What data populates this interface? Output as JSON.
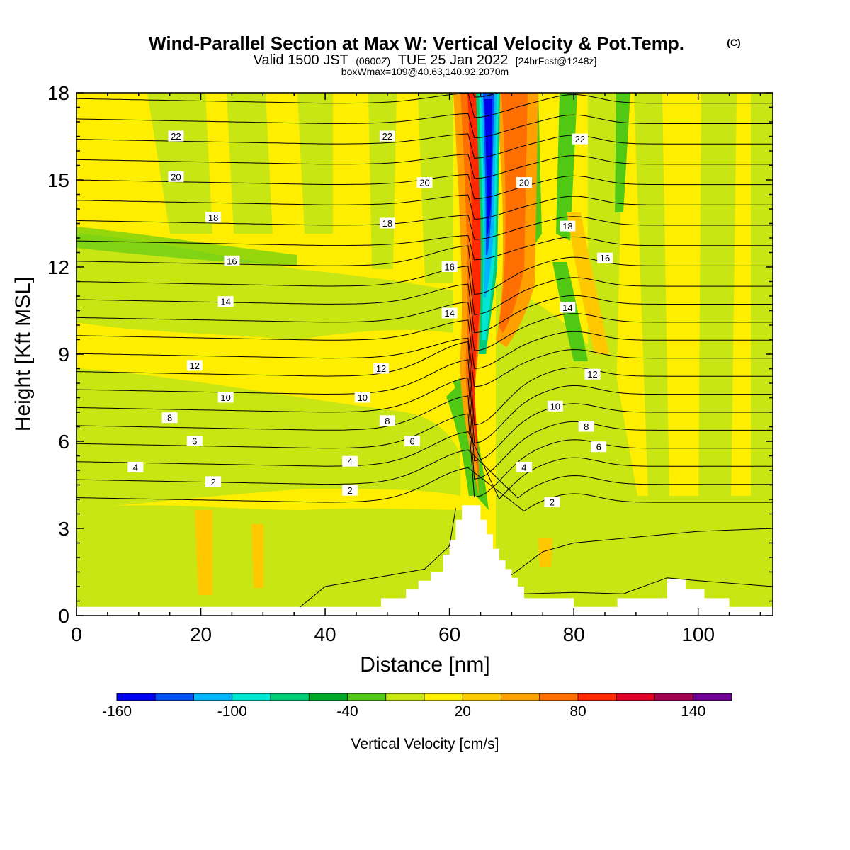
{
  "header": {
    "title": "Wind-Parallel Section at Max W: Vertical Velocity & Pot.Temp.",
    "copyright": "(C)",
    "valid_prefix": "Valid 1500 JST",
    "valid_zulu": "(0600Z)",
    "valid_date": "TUE 25 Jan 2022",
    "forecast": "[24hrFcst@1248z]",
    "box_info": "boxWmax=109@40.63,140.92,2070m"
  },
  "chart_data": {
    "type": "heatmap",
    "title": "Wind-Parallel Section at Max W: Vertical Velocity & Pot.Temp.",
    "xlabel": "Distance [nm]",
    "ylabel": "Height [Kft MSL]",
    "xlim": [
      0,
      112
    ],
    "ylim": [
      0,
      18
    ],
    "xticks": [
      0,
      20,
      40,
      60,
      80,
      100
    ],
    "yticks": [
      0,
      3,
      6,
      9,
      12,
      15,
      18
    ],
    "colorbar": {
      "label": "Vertical Velocity [cm/s]",
      "ticks": [
        "-160",
        "-100",
        "-40",
        "20",
        "80",
        "140"
      ],
      "colors": [
        "#0000ee",
        "#0050f0",
        "#00b4ff",
        "#00e6d2",
        "#00cc78",
        "#00aa28",
        "#50c814",
        "#c8e614",
        "#ffee00",
        "#ffc800",
        "#ffa000",
        "#ff6e00",
        "#ff2800",
        "#dc0028",
        "#a00050",
        "#6e0096"
      ]
    },
    "contour_labels": [
      {
        "text": "22",
        "x": 16,
        "y": 16.5
      },
      {
        "text": "22",
        "x": 50,
        "y": 16.5
      },
      {
        "text": "22",
        "x": 81,
        "y": 16.4
      },
      {
        "text": "20",
        "x": 16,
        "y": 15.1
      },
      {
        "text": "20",
        "x": 56,
        "y": 14.9
      },
      {
        "text": "20",
        "x": 72,
        "y": 14.9
      },
      {
        "text": "18",
        "x": 22,
        "y": 13.7
      },
      {
        "text": "18",
        "x": 50,
        "y": 13.5
      },
      {
        "text": "18",
        "x": 79,
        "y": 13.4
      },
      {
        "text": "16",
        "x": 25,
        "y": 12.2
      },
      {
        "text": "16",
        "x": 60,
        "y": 12.0
      },
      {
        "text": "16",
        "x": 85,
        "y": 12.3
      },
      {
        "text": "14",
        "x": 24,
        "y": 10.8
      },
      {
        "text": "14",
        "x": 60,
        "y": 10.4
      },
      {
        "text": "14",
        "x": 79,
        "y": 10.6
      },
      {
        "text": "12",
        "x": 19,
        "y": 8.6
      },
      {
        "text": "12",
        "x": 49,
        "y": 8.5
      },
      {
        "text": "12",
        "x": 83,
        "y": 8.3
      },
      {
        "text": "10",
        "x": 24,
        "y": 7.5
      },
      {
        "text": "10",
        "x": 46,
        "y": 7.5
      },
      {
        "text": "10",
        "x": 77,
        "y": 7.2
      },
      {
        "text": "8",
        "x": 15,
        "y": 6.8
      },
      {
        "text": "8",
        "x": 50,
        "y": 6.7
      },
      {
        "text": "8",
        "x": 82,
        "y": 6.5
      },
      {
        "text": "6",
        "x": 19,
        "y": 6.0
      },
      {
        "text": "6",
        "x": 54,
        "y": 6.0
      },
      {
        "text": "6",
        "x": 84,
        "y": 5.8
      },
      {
        "text": "4",
        "x": 9.5,
        "y": 5.1
      },
      {
        "text": "4",
        "x": 44,
        "y": 5.3
      },
      {
        "text": "4",
        "x": 72,
        "y": 5.1
      },
      {
        "text": "2",
        "x": 22,
        "y": 4.6
      },
      {
        "text": "2",
        "x": 44,
        "y": 4.3
      },
      {
        "text": "2",
        "x": 76.5,
        "y": 3.9
      }
    ],
    "terrain_profile": [
      [
        0,
        0.3
      ],
      [
        49,
        0.3
      ],
      [
        49,
        0.6
      ],
      [
        53,
        0.6
      ],
      [
        53,
        0.9
      ],
      [
        55,
        0.9
      ],
      [
        55,
        1.2
      ],
      [
        57,
        1.2
      ],
      [
        57,
        1.5
      ],
      [
        59,
        1.5
      ],
      [
        59,
        2.1
      ],
      [
        60,
        2.1
      ],
      [
        60,
        2.6
      ],
      [
        61,
        2.6
      ],
      [
        61,
        3.3
      ],
      [
        62,
        3.3
      ],
      [
        62,
        3.8
      ],
      [
        65,
        3.8
      ],
      [
        65,
        3.3
      ],
      [
        66,
        3.3
      ],
      [
        66,
        2.8
      ],
      [
        67,
        2.8
      ],
      [
        67,
        2.3
      ],
      [
        68,
        2.3
      ],
      [
        68,
        1.9
      ],
      [
        69,
        1.9
      ],
      [
        69,
        1.6
      ],
      [
        70,
        1.6
      ],
      [
        70,
        1.3
      ],
      [
        71,
        1.3
      ],
      [
        71,
        1.0
      ],
      [
        72,
        1.0
      ],
      [
        72,
        0.6
      ],
      [
        80,
        0.6
      ],
      [
        80,
        0.3
      ],
      [
        82,
        0.3
      ],
      [
        82,
        0.3
      ],
      [
        87,
        0.3
      ],
      [
        87,
        0.6
      ],
      [
        95,
        0.6
      ],
      [
        95,
        1.25
      ],
      [
        98,
        1.25
      ],
      [
        98,
        0.9
      ],
      [
        101,
        0.9
      ],
      [
        101,
        0.6
      ],
      [
        105,
        0.6
      ],
      [
        105,
        0.3
      ],
      [
        112,
        0.3
      ]
    ]
  }
}
